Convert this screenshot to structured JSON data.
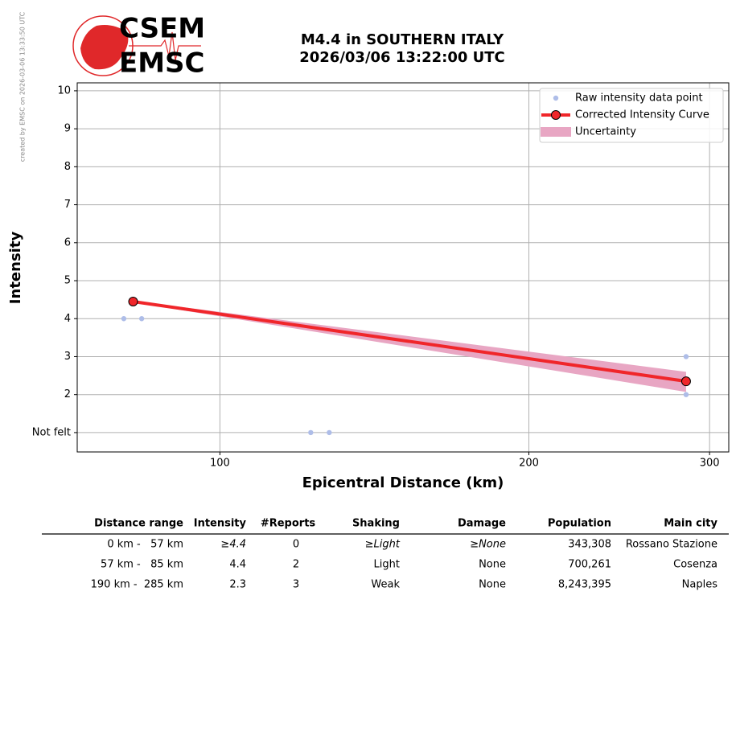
{
  "logo": {
    "top": "CSEM",
    "bottom": "EMSC"
  },
  "watermark": "created by EMSC on 2026-03-06 13:33:50 UTC",
  "chart_data": {
    "type": "line",
    "title": "M4.4 in SOUTHERN ITALY",
    "subtitle": "2026/03/06 13:22:00 UTC",
    "x_label": "Epicentral Distance (km)",
    "y_label": "Intensity",
    "xscale": "log",
    "xlim": [
      72.6,
      313.2
    ],
    "xticks": [
      100,
      200,
      300
    ],
    "ylim": [
      0.49,
      10.21
    ],
    "yticks": [
      {
        "value": 1,
        "label": "Not felt"
      },
      2,
      3,
      4,
      5,
      6,
      7,
      8,
      9,
      10
    ],
    "grid": true,
    "legend": "upper right",
    "series": [
      {
        "name": "Raw intensity data point",
        "color": "#aebde8",
        "marker": true,
        "line": false,
        "x": [
          80.6,
          83.9,
          122.6,
          127.8,
          284.6,
          284.6
        ],
        "values": [
          4,
          4,
          1,
          1,
          3,
          2
        ]
      },
      {
        "name": "Corrected Intensity Curve",
        "color": "#f0262a",
        "marker": true,
        "line": true,
        "x": [
          82.3,
          284.6
        ],
        "values": [
          4.45,
          2.35
        ]
      }
    ],
    "band": {
      "name": "Uncertainty",
      "color": "#e8a6c3",
      "x": [
        82.3,
        284.6
      ],
      "upper": [
        4.47,
        2.6
      ],
      "lower": [
        4.43,
        2.07
      ]
    }
  },
  "table": {
    "columns": [
      "Distance range",
      "Intensity",
      "#Reports",
      "Shaking",
      "Damage",
      "Population",
      "Main city"
    ],
    "rows": [
      [
        "0 km -   57 km",
        "≥4.4",
        "0",
        "≥Light",
        "≥None",
        "343,308",
        "Rossano Stazione"
      ],
      [
        "57 km -   85 km",
        "4.4",
        "2",
        "Light",
        "None",
        "700,261",
        "Cosenza"
      ],
      [
        "190 km -  285 km",
        "2.3",
        "3",
        "Weak",
        "None",
        "8,243,395",
        "Naples"
      ]
    ]
  }
}
